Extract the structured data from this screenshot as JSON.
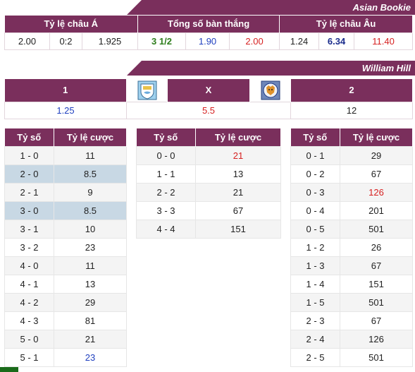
{
  "asian_bookie": {
    "banner": "Asian Bookie",
    "headers": [
      "Tỷ lệ châu Á",
      "Tổng số bàn thắng",
      "Tỷ lệ châu Âu"
    ],
    "values": [
      "2.00",
      "0:2",
      "1.925",
      "3 1/2",
      "1.90",
      "2.00",
      "1.24",
      "6.34",
      "11.40"
    ]
  },
  "william_hill": {
    "banner": "William Hill",
    "headers": [
      "1",
      "X",
      "2"
    ],
    "home_logo": "manchester-city-logo",
    "away_logo": "leicester-city-logo",
    "values": [
      "1.25",
      "5.5",
      "12"
    ]
  },
  "score_header": {
    "score": "Tỷ số",
    "odds": "Tỷ lệ cược"
  },
  "home_scores": [
    {
      "score": "1 - 0",
      "odds": "11"
    },
    {
      "score": "2 - 0",
      "odds": "8.5"
    },
    {
      "score": "2 - 1",
      "odds": "9"
    },
    {
      "score": "3 - 0",
      "odds": "8.5"
    },
    {
      "score": "3 - 1",
      "odds": "10"
    },
    {
      "score": "3 - 2",
      "odds": "23"
    },
    {
      "score": "4 - 0",
      "odds": "11"
    },
    {
      "score": "4 - 1",
      "odds": "13"
    },
    {
      "score": "4 - 2",
      "odds": "29"
    },
    {
      "score": "4 - 3",
      "odds": "81"
    },
    {
      "score": "5 - 0",
      "odds": "21"
    },
    {
      "score": "5 - 1",
      "odds": "23"
    }
  ],
  "draw_scores": [
    {
      "score": "0 - 0",
      "odds": "21"
    },
    {
      "score": "1 - 1",
      "odds": "13"
    },
    {
      "score": "2 - 2",
      "odds": "21"
    },
    {
      "score": "3 - 3",
      "odds": "67"
    },
    {
      "score": "4 - 4",
      "odds": "151"
    }
  ],
  "away_scores": [
    {
      "score": "0 - 1",
      "odds": "29"
    },
    {
      "score": "0 - 2",
      "odds": "67"
    },
    {
      "score": "0 - 3",
      "odds": "126"
    },
    {
      "score": "0 - 4",
      "odds": "201"
    },
    {
      "score": "0 - 5",
      "odds": "501"
    },
    {
      "score": "1 - 2",
      "odds": "26"
    },
    {
      "score": "1 - 3",
      "odds": "67"
    },
    {
      "score": "1 - 4",
      "odds": "151"
    },
    {
      "score": "1 - 5",
      "odds": "501"
    },
    {
      "score": "2 - 3",
      "odds": "67"
    },
    {
      "score": "2 - 4",
      "odds": "126"
    },
    {
      "score": "2 - 5",
      "odds": "501"
    }
  ],
  "colors": {
    "header": "#7a2f5c",
    "highlight": "#c8d8e4",
    "blue": "#1f3fbf",
    "red": "#d62020",
    "green": "#2e7d1c"
  }
}
